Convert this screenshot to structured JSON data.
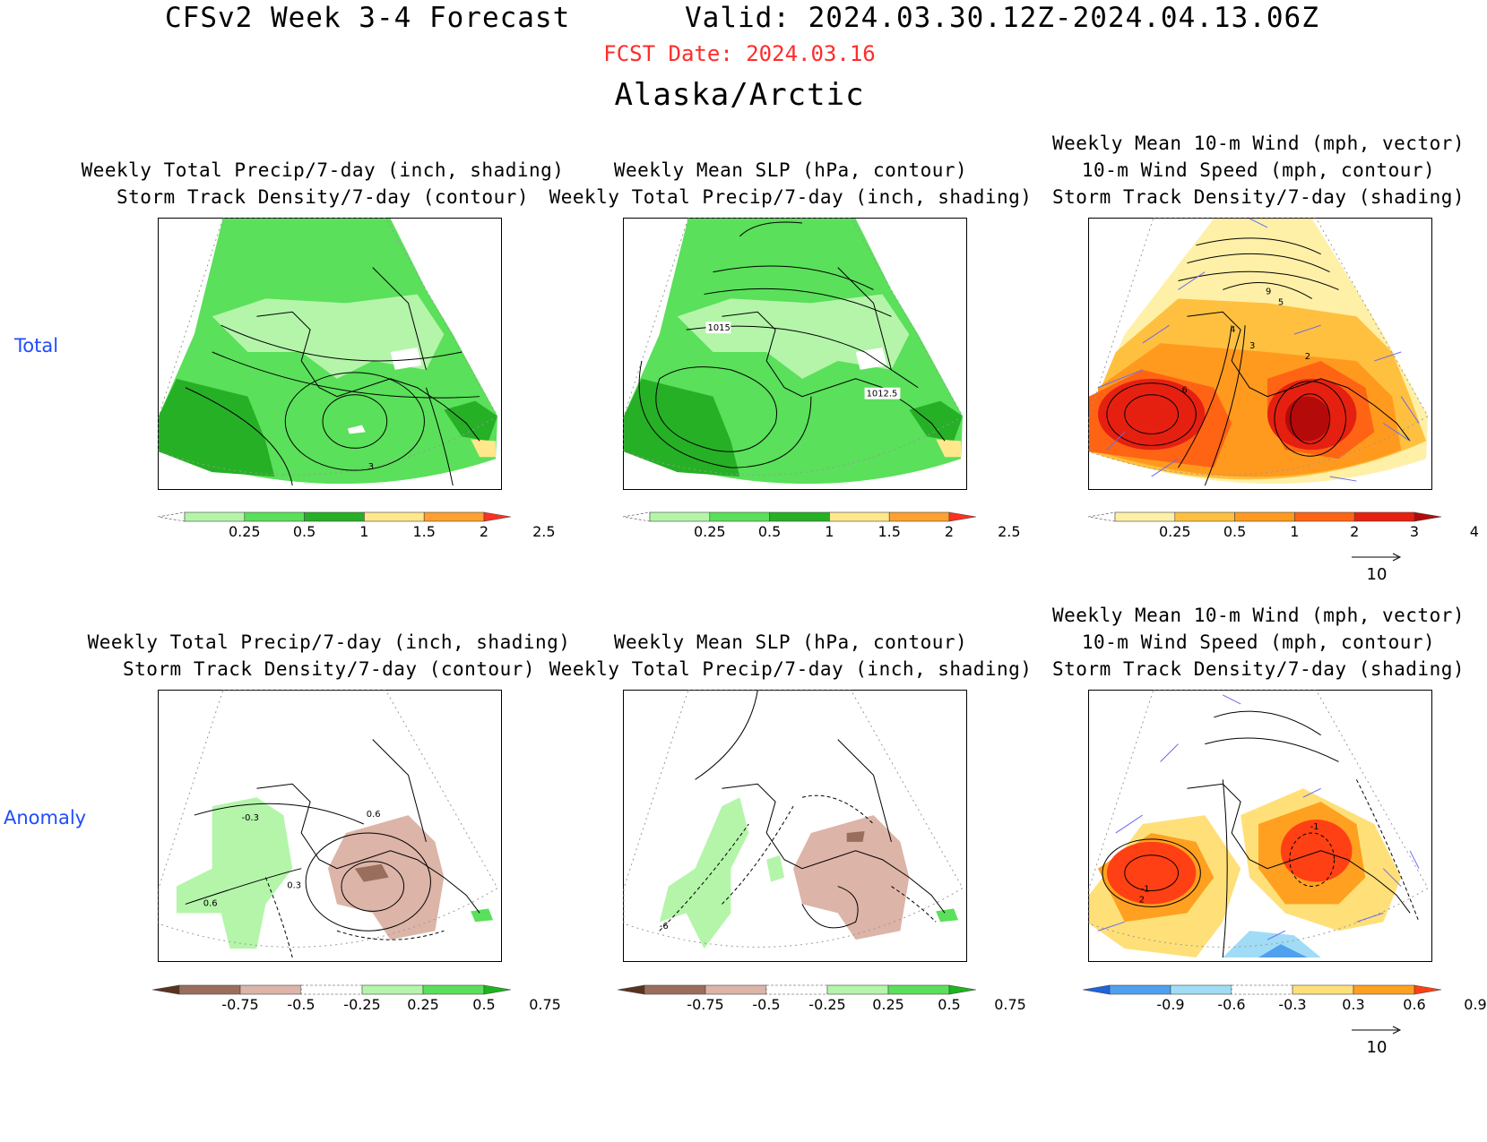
{
  "header": {
    "title_left": "CFSv2 Week 3-4 Forecast",
    "title_right": "Valid: 2024.03.30.12Z-2024.04.13.06Z",
    "fcst_date": "FCST Date: 2024.03.16",
    "region": "Alaska/Arctic"
  },
  "rows": [
    {
      "label": "Total"
    },
    {
      "label": "Anomaly"
    }
  ],
  "panels": [
    {
      "lines": [
        "Weekly Total Precip/7-day (inch, shading)",
        "Storm Track Density/7-day (contour)"
      ],
      "contour_labels": [
        "3"
      ]
    },
    {
      "lines": [
        "Weekly Mean SLP (hPa, contour)",
        "Weekly Total Precip/7-day (inch, shading)"
      ],
      "contour_labels": [
        "1015",
        "1012.5"
      ]
    },
    {
      "lines": [
        "Weekly Mean 10-m Wind (mph, vector)",
        "10-m Wind Speed (mph, contour)",
        "Storm Track Density/7-day (shading)"
      ],
      "contour_labels": [
        "9",
        "5",
        "4",
        "3",
        "2",
        "6"
      ]
    },
    {
      "lines": [
        "Weekly Total Precip/7-day (inch, shading)",
        "Storm Track Density/7-day (contour)"
      ],
      "contour_labels": [
        "-0.3",
        "0.6",
        "0.3",
        "0.6"
      ]
    },
    {
      "lines": [
        "Weekly Mean SLP (hPa, contour)",
        "Weekly Total Precip/7-day (inch, shading)"
      ],
      "contour_labels": [
        "-6"
      ]
    },
    {
      "lines": [
        "Weekly Mean 10-m Wind (mph, vector)",
        "10-m Wind Speed (mph, contour)",
        "Storm Track Density/7-day (shading)"
      ],
      "contour_labels": [
        "-1",
        "-1",
        "2"
      ]
    }
  ],
  "colorbars": {
    "precip_total": {
      "ticks": [
        "0.25",
        "0.5",
        "1",
        "1.5",
        "2",
        "2.5"
      ],
      "colors": [
        "#ffffff",
        "#b4f5aa",
        "#5ae05a",
        "#26b026",
        "#ffe78c",
        "#ffa030",
        "#ff3020"
      ]
    },
    "storm_total": {
      "ticks": [
        "0.25",
        "0.5",
        "1",
        "2",
        "3",
        "4"
      ],
      "colors": [
        "#ffffff",
        "#fff0a8",
        "#ffc040",
        "#ff9a1e",
        "#ff6414",
        "#e62010",
        "#b40a0a"
      ]
    },
    "precip_anom": {
      "ticks": [
        "-0.75",
        "-0.5",
        "-0.25",
        "0.25",
        "0.5",
        "0.75"
      ],
      "colors": [
        "#5a3220",
        "#9a6e5c",
        "#dcb4a8",
        "#ffffff",
        "#b4f5aa",
        "#5ae05a",
        "#1eb41e"
      ]
    },
    "storm_anom": {
      "ticks": [
        "-0.9",
        "-0.6",
        "-0.3",
        "0.3",
        "0.6",
        "0.9"
      ],
      "colors": [
        "#1e64dc",
        "#50a0f0",
        "#a0dcf5",
        "#ffffff",
        "#ffe078",
        "#ffa020",
        "#ff4014"
      ]
    }
  },
  "wind_reference": "10"
}
